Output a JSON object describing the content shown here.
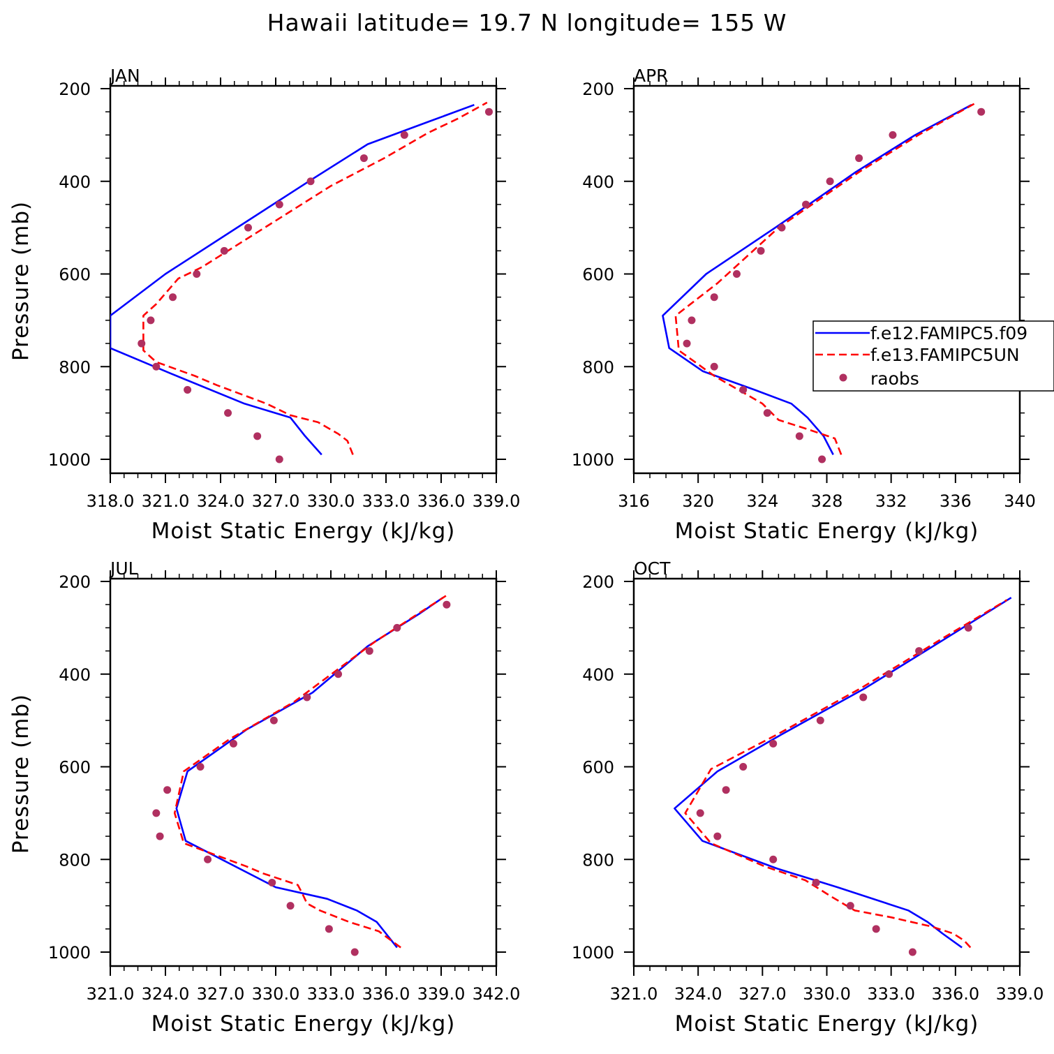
{
  "figure": {
    "title": "Hawaii  latitude= 19.7 N longitude= 155 W"
  },
  "legend": {
    "entries": [
      {
        "label": "f.e12.FAMIPC5.f09",
        "style": "solid",
        "color": "#0000ff"
      },
      {
        "label": "f.e13.FAMIPC5UN",
        "style": "dashed",
        "color": "#ff0000"
      },
      {
        "label": "raobs",
        "style": "marker",
        "color": "#b03060"
      }
    ]
  },
  "colors": {
    "model1": "#0000ff",
    "model2": "#ff0000",
    "obs": "#b03060",
    "axis": "#000000",
    "background": "#ffffff"
  },
  "chart_data": [
    {
      "panel": "JAN",
      "type": "line",
      "title": "JAN",
      "xlabel": "Moist Static Energy (kJ/kg)",
      "ylabel": "Pressure (mb)",
      "xlim": [
        318.0,
        339.0
      ],
      "ylim": [
        1000,
        200
      ],
      "xticks": [
        318,
        321,
        324,
        327,
        330,
        333,
        336,
        339
      ],
      "xtick_labels": [
        "318.0",
        "321.0",
        "324.0",
        "327.0",
        "330.0",
        "333.0",
        "336.0",
        "339.0"
      ],
      "yticks": [
        200,
        400,
        600,
        800,
        1000
      ],
      "ytick_labels": [
        "200",
        "400",
        "600",
        "800",
        "1000"
      ],
      "series": [
        {
          "name": "f.e12.FAMIPC5.f09",
          "style": "solid",
          "points": [
            [
              329.5,
              990
            ],
            [
              328.6,
              950
            ],
            [
              327.8,
              910
            ],
            [
              325.3,
              880
            ],
            [
              321.3,
              815
            ],
            [
              318.0,
              760
            ],
            [
              318.0,
              690
            ],
            [
              321.0,
              600
            ],
            [
              324.9,
              500
            ],
            [
              328.8,
              400
            ],
            [
              332.0,
              320
            ],
            [
              335.4,
              270
            ],
            [
              337.8,
              235
            ]
          ]
        },
        {
          "name": "f.e13.FAMIPC5UN",
          "style": "dashed",
          "points": [
            [
              331.2,
              990
            ],
            [
              330.9,
              960
            ],
            [
              330.4,
              945
            ],
            [
              329.3,
              920
            ],
            [
              327.8,
              905
            ],
            [
              326.5,
              880
            ],
            [
              323.8,
              840
            ],
            [
              322.6,
              820
            ],
            [
              320.5,
              790
            ],
            [
              319.8,
              765
            ],
            [
              319.8,
              690
            ],
            [
              320.5,
              665
            ],
            [
              321.7,
              610
            ],
            [
              323.0,
              585
            ],
            [
              326.4,
              500
            ],
            [
              330.0,
              410
            ],
            [
              332.9,
              350
            ],
            [
              335.3,
              295
            ],
            [
              336.9,
              265
            ],
            [
              338.5,
              230
            ]
          ]
        },
        {
          "name": "raobs",
          "style": "marker",
          "points": [
            [
              327.2,
              1000
            ],
            [
              326.0,
              950
            ],
            [
              324.4,
              900
            ],
            [
              322.2,
              850
            ],
            [
              320.5,
              800
            ],
            [
              319.7,
              750
            ],
            [
              320.2,
              700
            ],
            [
              321.4,
              650
            ],
            [
              322.7,
              600
            ],
            [
              324.2,
              550
            ],
            [
              325.5,
              500
            ],
            [
              327.2,
              450
            ],
            [
              328.9,
              400
            ],
            [
              331.8,
              350
            ],
            [
              334.0,
              300
            ],
            [
              338.6,
              250
            ]
          ]
        }
      ]
    },
    {
      "panel": "APR",
      "type": "line",
      "title": "APR",
      "xlabel": "Moist Static Energy (kJ/kg)",
      "ylabel": "",
      "xlim": [
        316,
        340
      ],
      "ylim": [
        1000,
        200
      ],
      "xticks": [
        316,
        320,
        324,
        328,
        332,
        336,
        340
      ],
      "xtick_labels": [
        "316",
        "320",
        "324",
        "328",
        "332",
        "336",
        "340"
      ],
      "yticks": [
        200,
        400,
        600,
        800,
        1000
      ],
      "ytick_labels": [
        "200",
        "400",
        "600",
        "800",
        "1000"
      ],
      "series": [
        {
          "name": "f.e12.FAMIPC5.f09",
          "style": "solid",
          "points": [
            [
              328.4,
              990
            ],
            [
              327.8,
              950
            ],
            [
              326.8,
              910
            ],
            [
              325.8,
              880
            ],
            [
              323.5,
              850
            ],
            [
              320.3,
              810
            ],
            [
              318.2,
              760
            ],
            [
              317.8,
              690
            ],
            [
              320.5,
              600
            ],
            [
              324.8,
              500
            ],
            [
              329.8,
              380
            ],
            [
              333.5,
              300
            ],
            [
              337.0,
              235
            ]
          ]
        },
        {
          "name": "f.e13.FAMIPC5UN",
          "style": "dashed",
          "points": [
            [
              328.9,
              990
            ],
            [
              328.5,
              955
            ],
            [
              326.8,
              935
            ],
            [
              325.0,
              915
            ],
            [
              324.0,
              880
            ],
            [
              321.0,
              820
            ],
            [
              318.8,
              765
            ],
            [
              318.6,
              690
            ],
            [
              321.2,
              620
            ],
            [
              325.0,
              500
            ],
            [
              330.0,
              380
            ],
            [
              333.7,
              300
            ],
            [
              337.3,
              230
            ]
          ]
        },
        {
          "name": "raobs",
          "style": "marker",
          "points": [
            [
              327.7,
              1000
            ],
            [
              326.3,
              950
            ],
            [
              324.3,
              900
            ],
            [
              322.8,
              850
            ],
            [
              321.0,
              800
            ],
            [
              319.3,
              750
            ],
            [
              319.6,
              700
            ],
            [
              321.0,
              650
            ],
            [
              322.4,
              600
            ],
            [
              323.9,
              550
            ],
            [
              325.2,
              500
            ],
            [
              326.7,
              450
            ],
            [
              328.2,
              400
            ],
            [
              330.0,
              350
            ],
            [
              332.1,
              300
            ],
            [
              337.6,
              250
            ]
          ]
        }
      ]
    },
    {
      "panel": "JUL",
      "type": "line",
      "title": "JUL",
      "xlabel": "Moist Static Energy (kJ/kg)",
      "ylabel": "Pressure (mb)",
      "xlim": [
        321.0,
        342.0
      ],
      "ylim": [
        1000,
        200
      ],
      "xticks": [
        321,
        324,
        327,
        330,
        333,
        336,
        339,
        342
      ],
      "xtick_labels": [
        "321.0",
        "324.0",
        "327.0",
        "330.0",
        "333.0",
        "336.0",
        "339.0",
        "342.0"
      ],
      "yticks": [
        200,
        400,
        600,
        800,
        1000
      ],
      "ytick_labels": [
        "200",
        "400",
        "600",
        "800",
        "1000"
      ],
      "series": [
        {
          "name": "f.e12.FAMIPC5.f09",
          "style": "solid",
          "points": [
            [
              336.6,
              990
            ],
            [
              336.0,
              960
            ],
            [
              335.5,
              935
            ],
            [
              334.4,
              910
            ],
            [
              332.8,
              885
            ],
            [
              330.0,
              860
            ],
            [
              325.1,
              760
            ],
            [
              324.6,
              690
            ],
            [
              325.2,
              610
            ],
            [
              328.4,
              520
            ],
            [
              332.0,
              440
            ],
            [
              335.0,
              340
            ],
            [
              337.8,
              270
            ],
            [
              339.1,
              235
            ]
          ]
        },
        {
          "name": "f.e13.FAMIPC5UN",
          "style": "dashed",
          "points": [
            [
              336.8,
              990
            ],
            [
              335.6,
              955
            ],
            [
              334.0,
              935
            ],
            [
              332.4,
              910
            ],
            [
              331.7,
              895
            ],
            [
              331.4,
              870
            ],
            [
              331.2,
              855
            ],
            [
              329.3,
              830
            ],
            [
              328.4,
              815
            ],
            [
              325.0,
              765
            ],
            [
              324.5,
              700
            ],
            [
              325.0,
              610
            ],
            [
              327.5,
              540
            ],
            [
              331.0,
              460
            ],
            [
              335.4,
              330
            ],
            [
              339.3,
              230
            ]
          ]
        },
        {
          "name": "raobs",
          "style": "marker",
          "points": [
            [
              334.3,
              1000
            ],
            [
              332.9,
              950
            ],
            [
              330.8,
              900
            ],
            [
              329.8,
              850
            ],
            [
              326.3,
              800
            ],
            [
              323.7,
              750
            ],
            [
              323.5,
              700
            ],
            [
              324.1,
              650
            ],
            [
              325.9,
              600
            ],
            [
              327.7,
              550
            ],
            [
              329.9,
              500
            ],
            [
              331.7,
              450
            ],
            [
              333.4,
              400
            ],
            [
              335.1,
              350
            ],
            [
              336.6,
              300
            ],
            [
              339.3,
              250
            ]
          ]
        }
      ]
    },
    {
      "panel": "OCT",
      "type": "line",
      "title": "OCT",
      "xlabel": "Moist Static Energy (kJ/kg)",
      "ylabel": "",
      "xlim": [
        321.0,
        339.0
      ],
      "ylim": [
        1000,
        200
      ],
      "xticks": [
        321,
        324,
        327,
        330,
        333,
        336,
        339
      ],
      "xtick_labels": [
        "321.0",
        "324.0",
        "327.0",
        "330.0",
        "333.0",
        "336.0",
        "339.0"
      ],
      "yticks": [
        200,
        400,
        600,
        800,
        1000
      ],
      "ytick_labels": [
        "200",
        "400",
        "600",
        "800",
        "1000"
      ],
      "series": [
        {
          "name": "f.e12.FAMIPC5.f09",
          "style": "solid",
          "points": [
            [
              336.3,
              990
            ],
            [
              335.4,
              960
            ],
            [
              334.7,
              935
            ],
            [
              333.8,
              910
            ],
            [
              330.5,
              860
            ],
            [
              327.7,
              820
            ],
            [
              324.2,
              760
            ],
            [
              322.9,
              690
            ],
            [
              324.9,
              610
            ],
            [
              327.9,
              530
            ],
            [
              331.8,
              430
            ],
            [
              335.3,
              330
            ],
            [
              338.6,
              235
            ]
          ]
        },
        {
          "name": "f.e13.FAMIPC5UN",
          "style": "dashed",
          "points": [
            [
              336.7,
              990
            ],
            [
              336.4,
              975
            ],
            [
              335.9,
              960
            ],
            [
              334.9,
              945
            ],
            [
              333.0,
              925
            ],
            [
              331.3,
              910
            ],
            [
              330.2,
              880
            ],
            [
              329.0,
              845
            ],
            [
              327.1,
              815
            ],
            [
              324.6,
              765
            ],
            [
              323.4,
              700
            ],
            [
              324.6,
              605
            ],
            [
              327.7,
              530
            ],
            [
              331.6,
              430
            ],
            [
              335.5,
              320
            ],
            [
              338.4,
              240
            ]
          ]
        },
        {
          "name": "raobs",
          "style": "marker",
          "points": [
            [
              334.0,
              1000
            ],
            [
              332.3,
              950
            ],
            [
              331.1,
              900
            ],
            [
              329.5,
              850
            ],
            [
              327.5,
              800
            ],
            [
              324.9,
              750
            ],
            [
              324.1,
              700
            ],
            [
              325.3,
              650
            ],
            [
              326.1,
              600
            ],
            [
              327.5,
              550
            ],
            [
              329.7,
              500
            ],
            [
              331.7,
              450
            ],
            [
              332.9,
              400
            ],
            [
              334.3,
              350
            ],
            [
              336.6,
              300
            ],
            [
              339.2,
              250
            ]
          ]
        }
      ]
    }
  ]
}
